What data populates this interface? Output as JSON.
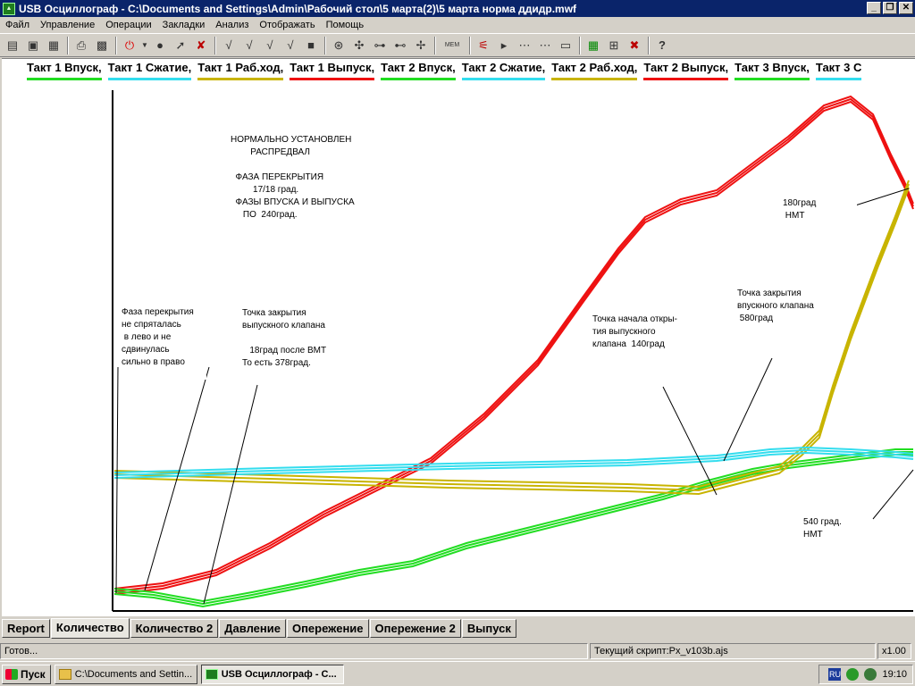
{
  "window": {
    "title": "USB Осциллограф - C:\\Documents and Settings\\Admin\\Рабочий стол\\5 марта(2)\\5 марта норма ддидр.mwf"
  },
  "menu": [
    "Файл",
    "Управление",
    "Операции",
    "Закладки",
    "Анализ",
    "Отображать",
    "Помощь"
  ],
  "toolbar_icons": [
    "open-icon",
    "save-icon",
    "save-as-icon",
    "print-icon",
    "preview-icon",
    "power-icon",
    "dropdown-icon",
    "record-icon",
    "play-icon",
    "stop-icon",
    "check-icon",
    "check-double-icon",
    "check-triple-icon",
    "check-plus-icon",
    "square-icon",
    "probe-icon",
    "probe2-icon",
    "probe3-icon",
    "probe4-icon",
    "probe5-icon",
    "mem-icon",
    "trigger-icon",
    "trigger2-icon",
    "trigger3-icon",
    "trigger4-icon",
    "view-icon",
    "grid-icon",
    "cross-icon",
    "help-icon"
  ],
  "legend": [
    {
      "label": "Такт 1 Впуск,",
      "color": "#22dd22"
    },
    {
      "label": "Такт 1 Сжатие,",
      "color": "#33ddee"
    },
    {
      "label": "Такт 1 Раб.ход,",
      "color": "#c8b400"
    },
    {
      "label": "Такт 1 Выпуск,",
      "color": "#ee1111"
    },
    {
      "label": "Такт 2 Впуск,",
      "color": "#22dd22"
    },
    {
      "label": "Такт 2 Сжатие,",
      "color": "#33ddee"
    },
    {
      "label": "Такт 2 Раб.ход,",
      "color": "#c8b400"
    },
    {
      "label": "Такт 2 Выпуск,",
      "color": "#ee1111"
    },
    {
      "label": "Такт 3 Впуск,",
      "color": "#22dd22"
    },
    {
      "label": "Такт 3 С",
      "color": "#33ddee"
    }
  ],
  "annotations": {
    "normal": "НОРМАЛЬНО УСТАНОВЛЕН\n        РАСПРЕДВАЛ\n\n  ФАЗА ПЕРЕКРЫТИЯ\n         17/18 град.\n  ФАЗЫ ВПУСКА И ВЫПУСКА\n     ПО  240град.",
    "overlap": "Фаза перекрытия\nне спряталась\n в лево и не\nсдвинулась\nсильно в право",
    "exhaust_close": "Точка закрытия\nвыпускного клапана\n\n   18град после ВМТ\nТо есть 378град.",
    "exhaust_open": "Точка начала откры-\nтия выпускного\nклапана  140град",
    "intake_close": "Точка закрытия\nвпускного клапана\n 580град",
    "bdc180": "180град\n НМТ",
    "bdc540": "540 град.\nНМТ"
  },
  "tabs": [
    "Report",
    "Количество",
    "Количество 2",
    "Давление",
    "Опережение",
    "Опережение 2",
    "Выпуск"
  ],
  "active_tab": 1,
  "status": {
    "ready": "Готов...",
    "script": "Текущий скрипт:Px_v103b.ajs",
    "zoom": "x1.00"
  },
  "taskbar": {
    "start": "Пуск",
    "task1": "C:\\Documents and Settin...",
    "task2": "USB Осциллограф - C...",
    "lang": "RU",
    "clock": "19:10"
  },
  "colors": {
    "intake": "#22dd22",
    "compression": "#33ddee",
    "power": "#c8b400",
    "exhaust": "#ee1111",
    "titlebar": "#0a246a"
  }
}
